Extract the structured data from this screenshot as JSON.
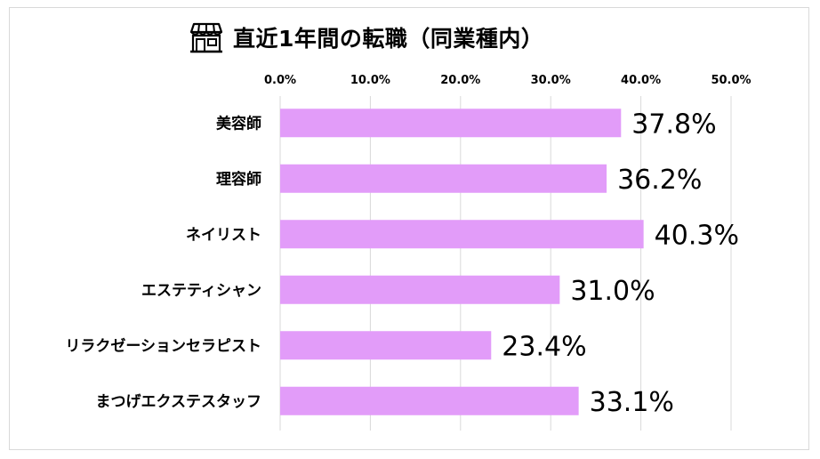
{
  "title": "直近1年間の転職（同業種内）",
  "title_icon": "store-icon",
  "colors": {
    "bar": "#e29cf9",
    "grid": "#d9d9d9",
    "text": "#000000"
  },
  "chart_data": {
    "type": "bar",
    "orientation": "horizontal",
    "title": "直近1年間の転職（同業種内）",
    "categories": [
      "美容師",
      "理容師",
      "ネイリスト",
      "エステティシャン",
      "リラクゼーションセラピスト",
      "まつげエクステスタッフ"
    ],
    "values": [
      37.8,
      36.2,
      40.3,
      31.0,
      23.4,
      33.1
    ],
    "data_labels": [
      "37.8%",
      "36.2%",
      "40.3%",
      "31.0%",
      "23.4%",
      "33.1%"
    ],
    "xlim": [
      0,
      50
    ],
    "x_ticks": [
      0,
      10,
      20,
      30,
      40,
      50
    ],
    "x_tick_labels": [
      "0.0%",
      "10.0%",
      "20.0%",
      "30.0%",
      "40.0%",
      "50.0%"
    ],
    "x_axis_position": "top",
    "grid": true,
    "legend": "none",
    "xlabel": "",
    "ylabel": ""
  }
}
